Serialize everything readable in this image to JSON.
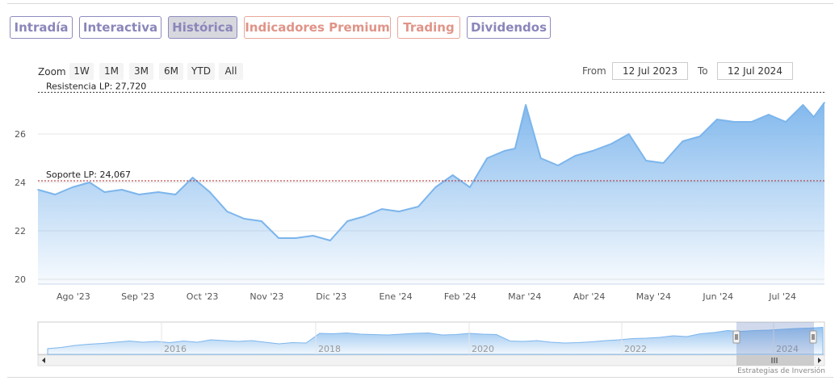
{
  "tabs": {
    "intradia": "Intradía",
    "interactiva": "Interactiva",
    "historica": "Histórica",
    "premium": "Indicadores Premium",
    "trading": "Trading",
    "dividendos": "Dividendos"
  },
  "zoom": {
    "label": "Zoom",
    "buttons": [
      "1W",
      "1M",
      "3M",
      "6M",
      "YTD",
      "All"
    ]
  },
  "range": {
    "from_label": "From",
    "from_value": "12 Jul 2023",
    "to_label": "To",
    "to_value": "12 Jul 2024"
  },
  "colors": {
    "line": "#7cb5ec",
    "area_top": "#7cb5ec",
    "plotline": "#b22222",
    "tab": "#8a86ba",
    "tab_premium": "#e09488"
  },
  "chart_data": {
    "type": "area",
    "series": [
      {
        "x": [
          "2023-07-12",
          "2023-07-20",
          "2023-07-28",
          "2023-08-05",
          "2023-08-12",
          "2023-08-20",
          "2023-08-28",
          "2023-09-06",
          "2023-09-14",
          "2023-09-22",
          "2023-09-30",
          "2023-10-08",
          "2023-10-16",
          "2023-10-24",
          "2023-11-01",
          "2023-11-09",
          "2023-11-17",
          "2023-11-25",
          "2023-12-03",
          "2023-12-11",
          "2023-12-19",
          "2023-12-27",
          "2024-01-05",
          "2024-01-13",
          "2024-01-21",
          "2024-01-29",
          "2024-02-06",
          "2024-02-14",
          "2024-02-19",
          "2024-02-24",
          "2024-03-02",
          "2024-03-10",
          "2024-03-18",
          "2024-03-26",
          "2024-04-04",
          "2024-04-12",
          "2024-04-20",
          "2024-04-28",
          "2024-05-07",
          "2024-05-15",
          "2024-05-23",
          "2024-05-31",
          "2024-06-08",
          "2024-06-16",
          "2024-06-24",
          "2024-07-02",
          "2024-07-07",
          "2024-07-12"
        ],
        "values": [
          23.7,
          23.5,
          23.8,
          24.0,
          23.6,
          23.7,
          23.5,
          23.6,
          23.5,
          24.2,
          23.6,
          22.8,
          22.5,
          22.4,
          21.7,
          21.7,
          21.8,
          21.6,
          22.4,
          22.6,
          22.9,
          22.8,
          23.0,
          23.8,
          24.3,
          23.8,
          25.0,
          25.3,
          25.4,
          27.2,
          25.0,
          24.7,
          25.1,
          25.3,
          25.6,
          26.0,
          24.9,
          24.8,
          25.7,
          25.9,
          26.6,
          26.5,
          26.5,
          26.8,
          26.5,
          27.2,
          26.7,
          27.3
        ]
      }
    ],
    "y_ticks": [
      20,
      22,
      24,
      26
    ],
    "ylim": [
      19.8,
      27.8
    ],
    "x_ticks": [
      "Ago '23",
      "Sep '23",
      "Oct '23",
      "Nov '23",
      "Dic '23",
      "Ene '24",
      "Feb '24",
      "Mar '24",
      "Abr '24",
      "May '24",
      "Jun '24",
      "Jul '24"
    ],
    "plot_lines": [
      {
        "label": "Resistencia LP: 27,720",
        "value": 27.72
      },
      {
        "label": "Soporte LP: 24,067",
        "value": 24.067
      }
    ],
    "navigator": {
      "x_ticks": [
        "2016",
        "2018",
        "2020",
        "2022",
        "2024"
      ],
      "values": [
        22,
        22.3,
        22.8,
        23.1,
        23.3,
        23.6,
        23.9,
        23.6,
        23.8,
        23.5,
        23.9,
        23.6,
        24.2,
        24.0,
        23.8,
        24.0,
        23.6,
        23.2,
        23.5,
        23.4,
        25.8,
        25.7,
        25.9,
        25.6,
        25.5,
        25.4,
        25.6,
        25.8,
        25.9,
        25.4,
        25.5,
        25.8,
        25.6,
        25.5,
        23.9,
        23.8,
        24.0,
        23.6,
        23.4,
        23.5,
        23.7,
        24.0,
        24.2,
        24.5,
        24.6,
        24.8,
        25.2,
        25.0,
        25.7,
        26.0,
        26.5,
        26.3,
        26.5,
        26.6,
        26.8,
        27.0,
        27.1,
        27.3
      ]
    },
    "grid": true,
    "legend": "none"
  },
  "credit": "Estrategias de Inversión"
}
